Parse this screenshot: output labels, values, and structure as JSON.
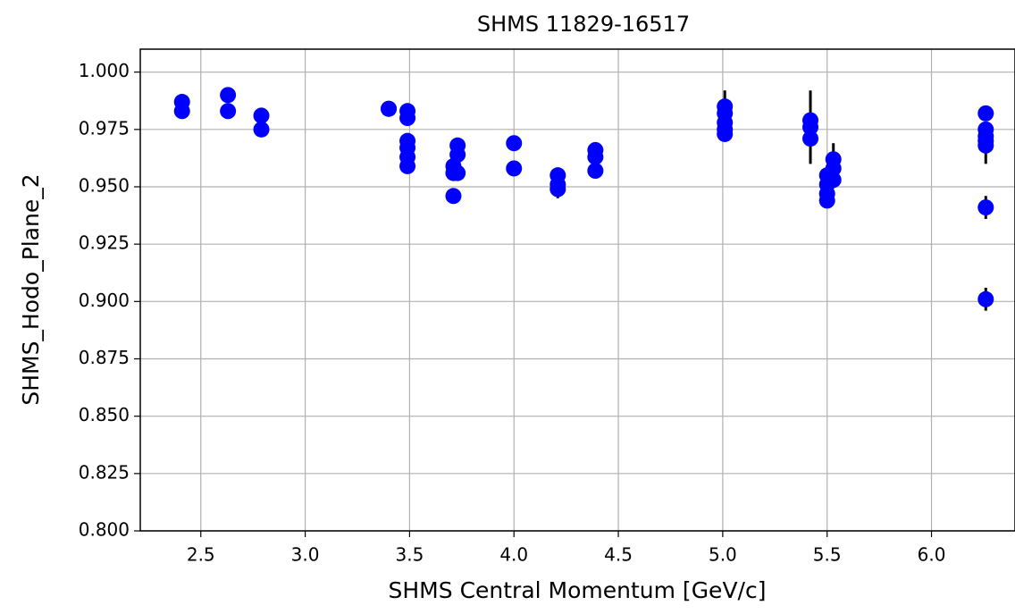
{
  "chart_data": {
    "type": "scatter",
    "title": "SHMS 11829-16517",
    "xlabel": "SHMS Central Momentum [GeV/c]",
    "ylabel": "SHMS_Hodo_Plane_2",
    "series": [
      {
        "color": "#0000ff",
        "error_color": "#000000",
        "x": [
          2.41,
          2.41,
          2.63,
          2.63,
          2.79,
          2.79,
          3.4,
          3.4,
          3.49,
          3.49,
          3.49,
          3.49,
          3.49,
          3.49,
          3.71,
          3.71,
          3.71,
          3.73,
          3.73,
          3.73,
          4.0,
          4.0,
          4.21,
          4.21,
          4.21,
          4.39,
          4.39,
          4.39,
          5.01,
          5.01,
          5.01,
          5.01,
          5.01,
          5.42,
          5.42,
          5.42,
          5.5,
          5.5,
          5.5,
          5.5,
          5.53,
          5.53,
          5.53,
          6.26,
          6.26,
          6.26,
          6.26,
          6.26,
          6.26,
          6.26
        ],
        "values": [
          0.987,
          0.983,
          0.99,
          0.983,
          0.981,
          0.975,
          0.984,
          0.984,
          0.983,
          0.98,
          0.97,
          0.967,
          0.963,
          0.959,
          0.959,
          0.956,
          0.946,
          0.968,
          0.964,
          0.956,
          0.969,
          0.958,
          0.955,
          0.951,
          0.949,
          0.966,
          0.963,
          0.957,
          0.985,
          0.982,
          0.978,
          0.975,
          0.973,
          0.979,
          0.976,
          0.971,
          0.955,
          0.951,
          0.947,
          0.944,
          0.962,
          0.958,
          0.953,
          0.982,
          0.975,
          0.972,
          0.97,
          0.968,
          0.941,
          0.901
        ],
        "errors": [
          0.002,
          0.002,
          0.002,
          0.002,
          0.002,
          0.002,
          0.002,
          0.002,
          0.002,
          0.002,
          0.002,
          0.002,
          0.002,
          0.002,
          0.002,
          0.002,
          0.002,
          0.002,
          0.002,
          0.002,
          0.002,
          0.002,
          0.002,
          0.002,
          0.004,
          0.002,
          0.002,
          0.002,
          0.007,
          0.002,
          0.002,
          0.002,
          0.002,
          0.002,
          0.016,
          0.002,
          0.002,
          0.002,
          0.002,
          0.002,
          0.007,
          0.002,
          0.002,
          0.002,
          0.002,
          0.002,
          0.002,
          0.008,
          0.005,
          0.005
        ]
      }
    ],
    "xlim": [
      2.21,
      6.4
    ],
    "ylim": [
      0.8,
      1.01
    ],
    "xticks": [
      {
        "value": 2.5,
        "label": "2.5"
      },
      {
        "value": 3.0,
        "label": "3.0"
      },
      {
        "value": 3.5,
        "label": "3.5"
      },
      {
        "value": 4.0,
        "label": "4.0"
      },
      {
        "value": 4.5,
        "label": "4.5"
      },
      {
        "value": 5.0,
        "label": "5.0"
      },
      {
        "value": 5.5,
        "label": "5.5"
      },
      {
        "value": 6.0,
        "label": "6.0"
      }
    ],
    "yticks": [
      {
        "value": 0.8,
        "label": "0.800"
      },
      {
        "value": 0.825,
        "label": "0.825"
      },
      {
        "value": 0.85,
        "label": "0.850"
      },
      {
        "value": 0.875,
        "label": "0.875"
      },
      {
        "value": 0.9,
        "label": "0.900"
      },
      {
        "value": 0.925,
        "label": "0.925"
      },
      {
        "value": 0.95,
        "label": "0.950"
      },
      {
        "value": 0.975,
        "label": "0.975"
      },
      {
        "value": 1.0,
        "label": "1.000"
      }
    ],
    "grid": true
  }
}
